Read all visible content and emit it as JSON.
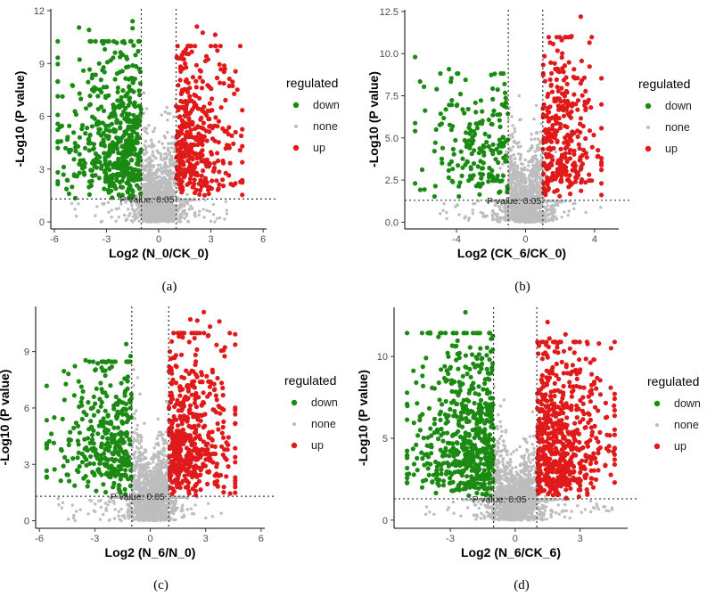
{
  "figure": {
    "legend": {
      "title": "regulated",
      "entries": [
        {
          "label": "down",
          "color": "#1b8a12"
        },
        {
          "label": "none",
          "color": "#bdbdbd"
        },
        {
          "label": "up",
          "color": "#e01a1a"
        }
      ]
    },
    "threshold_label": "P value: 0.05"
  },
  "chart_data": [
    {
      "type": "scatter",
      "panel_label": "(a)",
      "xlabel": "Log2 (N_0/CK_0)",
      "ylabel": "-Log10 (P value)",
      "xlim": [
        -6.2,
        6.2
      ],
      "ylim": [
        -0.4,
        12.1
      ],
      "xticks": [
        -6,
        -3,
        0,
        3,
        6
      ],
      "yticks": [
        0,
        3,
        6,
        9,
        12
      ],
      "ytick_labels": [
        "0",
        "3",
        "6",
        "9",
        "12"
      ],
      "fc_threshold": [
        -1,
        1
      ],
      "p_threshold_y": 1.3,
      "series": [
        {
          "name": "down",
          "x_range": [
            -5.8,
            -1.0
          ],
          "y_range": [
            1.3,
            11.4
          ],
          "max_point": [
            -1.5,
            11.4
          ]
        },
        {
          "name": "none",
          "x_range": [
            -5.0,
            4.0
          ],
          "y_range": [
            0,
            9.5
          ]
        },
        {
          "name": "up",
          "x_range": [
            1.0,
            4.8
          ],
          "y_range": [
            1.3,
            11.1
          ],
          "max_point": [
            2.2,
            11.1
          ]
        }
      ],
      "grid": false,
      "legend_position": "right"
    },
    {
      "type": "scatter",
      "panel_label": "(b)",
      "xlabel": "Log2 (CK_6/CK_0)",
      "ylabel": "-Log10 (P value)",
      "xlim": [
        -7.0,
        5.4
      ],
      "ylim": [
        -0.4,
        12.6
      ],
      "xticks": [
        -4,
        0,
        4
      ],
      "yticks": [
        0,
        2.5,
        5,
        7.5,
        10,
        12.5
      ],
      "ytick_labels": [
        "0.0",
        "2.5",
        "5.0",
        "7.5",
        "10.0",
        "12.5"
      ],
      "fc_threshold": [
        -1,
        1
      ],
      "p_threshold_y": 1.3,
      "series": [
        {
          "name": "down",
          "x_range": [
            -6.4,
            -1.0
          ],
          "y_range": [
            1.3,
            9.8
          ],
          "max_point": [
            -6.4,
            9.8
          ]
        },
        {
          "name": "none",
          "x_range": [
            -5.0,
            4.5
          ],
          "y_range": [
            0,
            7.5
          ]
        },
        {
          "name": "up",
          "x_range": [
            1.0,
            4.4
          ],
          "y_range": [
            1.3,
            12.2
          ],
          "max_point": [
            3.2,
            12.2
          ]
        }
      ],
      "grid": false,
      "legend_position": "right"
    },
    {
      "type": "scatter",
      "panel_label": "(c)",
      "xlabel": "Log2 (N_6/N_0)",
      "ylabel": "-Log10 (P value)",
      "xlim": [
        -6.2,
        6.2
      ],
      "ylim": [
        -0.4,
        11.4
      ],
      "xticks": [
        -6,
        -3,
        0,
        3,
        6
      ],
      "yticks": [
        0,
        3,
        6,
        9
      ],
      "ytick_labels": [
        "0",
        "3",
        "6",
        "9"
      ],
      "fc_threshold": [
        -1,
        1
      ],
      "p_threshold_y": 1.3,
      "series": [
        {
          "name": "down",
          "x_range": [
            -5.6,
            -1.0
          ],
          "y_range": [
            1.3,
            9.4
          ],
          "max_point": [
            -1.3,
            9.4
          ]
        },
        {
          "name": "none",
          "x_range": [
            -5.0,
            4.5
          ],
          "y_range": [
            0,
            9.0
          ]
        },
        {
          "name": "up",
          "x_range": [
            1.0,
            4.6
          ],
          "y_range": [
            1.3,
            11.1
          ],
          "max_point": [
            2.9,
            11.1
          ]
        }
      ],
      "grid": false,
      "legend_position": "right"
    },
    {
      "type": "scatter",
      "panel_label": "(d)",
      "xlabel": "Log2 (N_6/CK_6)",
      "ylabel": "-Log10 (P value)",
      "xlim": [
        -5.6,
        5.2
      ],
      "ylim": [
        -0.5,
        13.0
      ],
      "xticks": [
        -3,
        0,
        3
      ],
      "yticks": [
        0,
        5,
        10
      ],
      "ytick_labels": [
        "0",
        "5",
        "10"
      ],
      "fc_threshold": [
        -1,
        1
      ],
      "p_threshold_y": 1.3,
      "series": [
        {
          "name": "down",
          "x_range": [
            -5.0,
            -1.0
          ],
          "y_range": [
            1.3,
            12.7
          ],
          "max_point": [
            -2.3,
            12.7
          ]
        },
        {
          "name": "none",
          "x_range": [
            -4.5,
            4.5
          ],
          "y_range": [
            0,
            9.5
          ]
        },
        {
          "name": "up",
          "x_range": [
            1.0,
            4.6
          ],
          "y_range": [
            1.3,
            12.1
          ],
          "max_point": [
            1.5,
            12.1
          ]
        }
      ],
      "grid": false,
      "legend_position": "right"
    }
  ]
}
